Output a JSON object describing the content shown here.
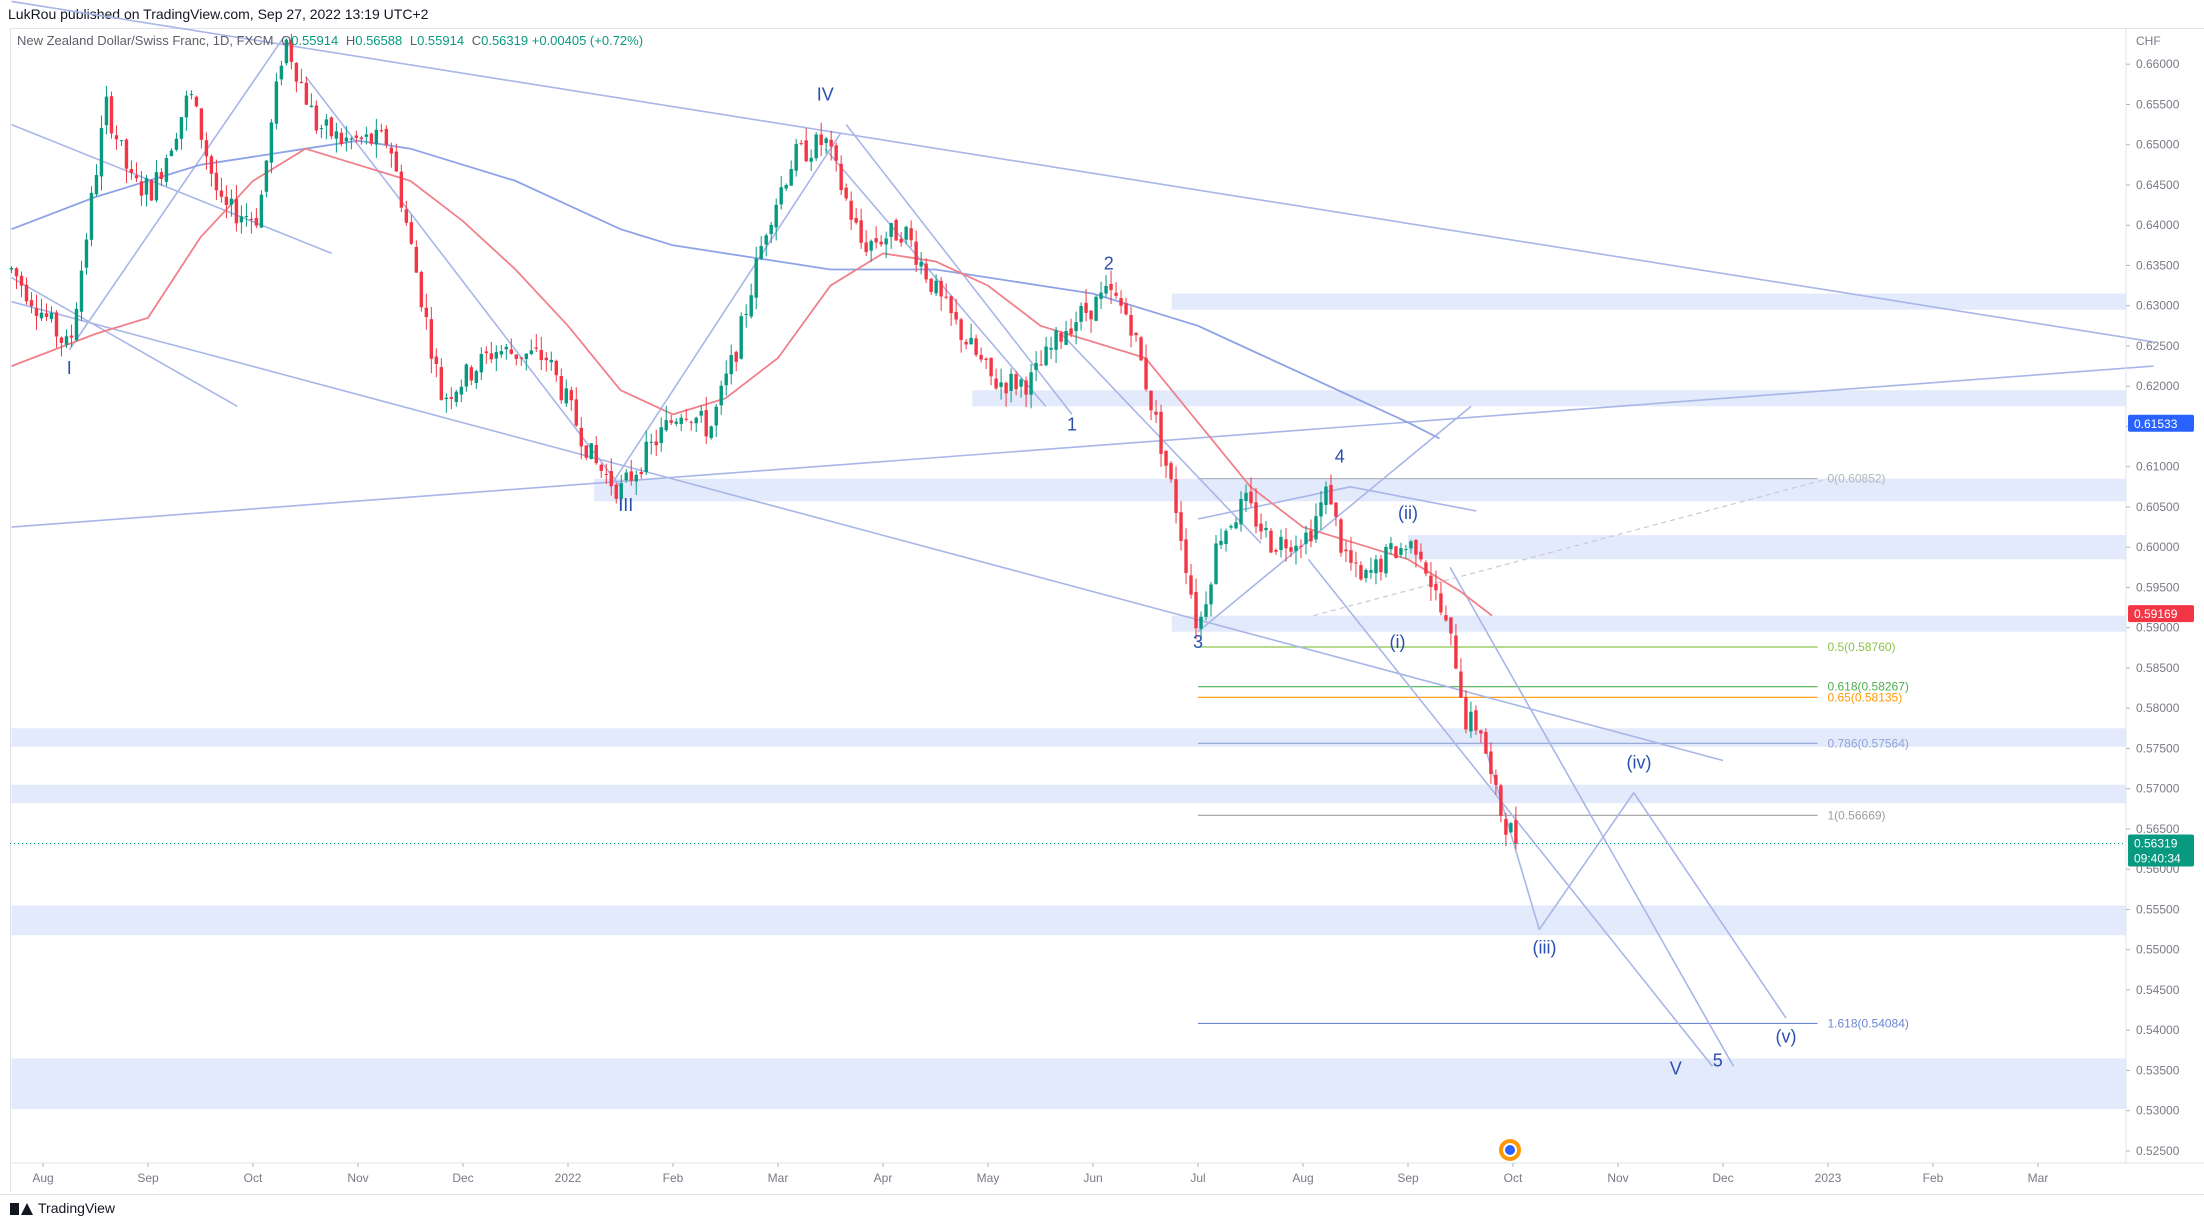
{
  "header": {
    "publisher": "LukRou published on TradingView.com, Sep 27, 2022 13:19 UTC+2"
  },
  "legend": {
    "symbol": "New Zealand Dollar/Swiss Franc, 1D, FXCM",
    "o_label": "O",
    "o_value": "0.55914",
    "h_label": "H",
    "h_value": "0.56588",
    "l_label": "L",
    "l_value": "0.55914",
    "c_label": "C",
    "c_value": "0.56319",
    "change": "+0.00405 (+0.72%)"
  },
  "footer": {
    "brand": "TradingView"
  },
  "colors": {
    "up": "#089981",
    "down": "#f23645",
    "trend": "#a8b6e8",
    "ma_fast": "#f0808a",
    "ma_slow": "#8ea2e6",
    "zone": "#e3eafb",
    "wave_label": "#2a4fb0",
    "price_tag": "#089981"
  },
  "chart_data": {
    "type": "candlestick",
    "currency": "CHF",
    "ylim": [
      0.5235,
      0.6645
    ],
    "y_ticks": [
      "0.66000",
      "0.65500",
      "0.65000",
      "0.64500",
      "0.64000",
      "0.63500",
      "0.63000",
      "0.62500",
      "0.62000",
      "0.61500",
      "0.61000",
      "0.60500",
      "0.60000",
      "0.59500",
      "0.59000",
      "0.58500",
      "0.58000",
      "0.57500",
      "0.57000",
      "0.56500",
      "0.56000",
      "0.55500",
      "0.55000",
      "0.54500",
      "0.54000",
      "0.53500",
      "0.53000",
      "0.52500"
    ],
    "x_ticks": [
      {
        "label": "Aug",
        "m": 0
      },
      {
        "label": "Sep",
        "m": 1
      },
      {
        "label": "Oct",
        "m": 2
      },
      {
        "label": "Nov",
        "m": 3
      },
      {
        "label": "Dec",
        "m": 4
      },
      {
        "label": "2022",
        "m": 5
      },
      {
        "label": "Feb",
        "m": 6
      },
      {
        "label": "Mar",
        "m": 7
      },
      {
        "label": "Apr",
        "m": 8
      },
      {
        "label": "May",
        "m": 9
      },
      {
        "label": "Jun",
        "m": 10
      },
      {
        "label": "Jul",
        "m": 11
      },
      {
        "label": "Aug",
        "m": 12
      },
      {
        "label": "Sep",
        "m": 13
      },
      {
        "label": "Oct",
        "m": 14
      },
      {
        "label": "Nov",
        "m": 15
      },
      {
        "label": "Dec",
        "m": 16
      },
      {
        "label": "2023",
        "m": 17
      },
      {
        "label": "Feb",
        "m": 18
      },
      {
        "label": "Mar",
        "m": 19
      }
    ],
    "price_path": [
      [
        -0.3,
        0.6345
      ],
      [
        0.25,
        0.6245
      ],
      [
        0.6,
        0.655
      ],
      [
        0.85,
        0.645
      ],
      [
        1.05,
        0.6445
      ],
      [
        1.4,
        0.6565
      ],
      [
        1.7,
        0.642
      ],
      [
        2.05,
        0.641
      ],
      [
        2.3,
        0.6635
      ],
      [
        2.6,
        0.6525
      ],
      [
        2.85,
        0.6505
      ],
      [
        3.3,
        0.6505
      ],
      [
        3.8,
        0.6185
      ],
      [
        4.3,
        0.6245
      ],
      [
        4.8,
        0.6235
      ],
      [
        5.25,
        0.6105
      ],
      [
        5.5,
        0.607
      ],
      [
        5.85,
        0.6135
      ],
      [
        6.1,
        0.6175
      ],
      [
        6.35,
        0.6145
      ],
      [
        6.6,
        0.6245
      ],
      [
        6.9,
        0.6405
      ],
      [
        7.15,
        0.6485
      ],
      [
        7.45,
        0.6505
      ],
      [
        7.8,
        0.6375
      ],
      [
        8.2,
        0.6395
      ],
      [
        8.55,
        0.6305
      ],
      [
        9.05,
        0.6205
      ],
      [
        9.4,
        0.6205
      ],
      [
        9.75,
        0.6275
      ],
      [
        10.15,
        0.6315
      ],
      [
        10.35,
        0.6285
      ],
      [
        10.6,
        0.6155
      ],
      [
        10.8,
        0.6045
      ],
      [
        11.0,
        0.5895
      ],
      [
        11.2,
        0.6015
      ],
      [
        11.45,
        0.6055
      ],
      [
        11.7,
        0.6005
      ],
      [
        12.05,
        0.6015
      ],
      [
        12.25,
        0.6075
      ],
      [
        12.35,
        0.6005
      ],
      [
        12.55,
        0.5955
      ],
      [
        12.85,
        0.5995
      ],
      [
        13.1,
        0.6005
      ],
      [
        13.3,
        0.5925
      ],
      [
        13.45,
        0.5865
      ],
      [
        13.55,
        0.5785
      ],
      [
        13.7,
        0.5775
      ],
      [
        13.8,
        0.5705
      ],
      [
        13.9,
        0.5665
      ],
      [
        14.05,
        0.5632
      ]
    ],
    "ma_fast": [
      [
        -0.3,
        0.6225
      ],
      [
        0.5,
        0.6265
      ],
      [
        1.0,
        0.6285
      ],
      [
        1.5,
        0.6385
      ],
      [
        2.0,
        0.6455
      ],
      [
        2.5,
        0.6495
      ],
      [
        3.0,
        0.6475
      ],
      [
        3.5,
        0.6455
      ],
      [
        4.0,
        0.6405
      ],
      [
        4.5,
        0.6345
      ],
      [
        5.0,
        0.6275
      ],
      [
        5.5,
        0.6195
      ],
      [
        6.0,
        0.6165
      ],
      [
        6.5,
        0.6185
      ],
      [
        7.0,
        0.6235
      ],
      [
        7.5,
        0.6325
      ],
      [
        8.0,
        0.6365
      ],
      [
        8.5,
        0.6355
      ],
      [
        9.0,
        0.6325
      ],
      [
        9.5,
        0.6275
      ],
      [
        10.0,
        0.6255
      ],
      [
        10.5,
        0.6235
      ],
      [
        11.0,
        0.6155
      ],
      [
        11.5,
        0.6075
      ],
      [
        12.0,
        0.6025
      ],
      [
        12.5,
        0.6005
      ],
      [
        13.0,
        0.5985
      ],
      [
        13.5,
        0.5945
      ],
      [
        13.8,
        0.5915
      ]
    ],
    "ma_slow": [
      [
        -0.3,
        0.6395
      ],
      [
        0.5,
        0.6435
      ],
      [
        1.0,
        0.6455
      ],
      [
        1.5,
        0.6475
      ],
      [
        2.0,
        0.6485
      ],
      [
        2.5,
        0.6495
      ],
      [
        3.0,
        0.6505
      ],
      [
        3.5,
        0.6495
      ],
      [
        4.0,
        0.6475
      ],
      [
        4.5,
        0.6455
      ],
      [
        5.0,
        0.6425
      ],
      [
        5.5,
        0.6395
      ],
      [
        6.0,
        0.6375
      ],
      [
        6.5,
        0.6365
      ],
      [
        7.0,
        0.6355
      ],
      [
        7.5,
        0.6345
      ],
      [
        8.0,
        0.6345
      ],
      [
        8.5,
        0.6345
      ],
      [
        9.0,
        0.6335
      ],
      [
        9.5,
        0.6325
      ],
      [
        10.0,
        0.6315
      ],
      [
        10.5,
        0.6295
      ],
      [
        11.0,
        0.6275
      ],
      [
        11.5,
        0.6245
      ],
      [
        12.0,
        0.6215
      ],
      [
        12.5,
        0.6185
      ],
      [
        13.0,
        0.6155
      ],
      [
        13.3,
        0.6135
      ]
    ],
    "zones": [
      [
        0.6315,
        0.6295,
        10.75,
        20.1
      ],
      [
        0.6195,
        0.6175,
        8.85,
        20.1
      ],
      [
        0.6085,
        0.6057,
        5.25,
        20.1
      ],
      [
        0.6015,
        0.5985,
        13.0,
        20.1
      ],
      [
        0.5915,
        0.5895,
        10.75,
        20.1
      ],
      [
        0.5775,
        0.5752,
        -0.3,
        20.1
      ],
      [
        0.5705,
        0.5682,
        -0.3,
        20.1
      ],
      [
        0.5555,
        0.5518,
        -0.3,
        20.1
      ],
      [
        0.5365,
        0.5302,
        -0.3,
        20.1
      ]
    ],
    "trendlines": [
      [
        -0.3,
        0.6678,
        20.1,
        0.6255
      ],
      [
        -0.3,
        0.6025,
        20.1,
        0.6225
      ],
      [
        -0.3,
        0.6305,
        16.0,
        0.5735
      ],
      [
        -0.3,
        0.6525,
        2.75,
        0.6365
      ],
      [
        -0.3,
        0.6335,
        1.85,
        0.6175
      ],
      [
        0.25,
        0.6245,
        2.3,
        0.6635
      ],
      [
        2.5,
        0.6585,
        5.5,
        0.6075
      ],
      [
        5.4,
        0.6075,
        7.6,
        0.6515
      ],
      [
        7.65,
        0.6525,
        9.8,
        0.6165
      ],
      [
        7.45,
        0.6495,
        9.55,
        0.6175
      ],
      [
        9.7,
        0.6265,
        11.6,
        0.6005
      ],
      [
        11.0,
        0.5895,
        13.6,
        0.6175
      ],
      [
        11.0,
        0.6035,
        12.45,
        0.6075
      ],
      [
        12.45,
        0.6075,
        13.65,
        0.6045
      ],
      [
        12.05,
        0.5985,
        15.9,
        0.5355
      ],
      [
        13.4,
        0.5975,
        16.1,
        0.5355
      ],
      [
        13.75,
        0.5745,
        14.25,
        0.5525
      ],
      [
        14.25,
        0.5525,
        15.15,
        0.5695
      ],
      [
        15.15,
        0.5695,
        16.6,
        0.5415
      ]
    ],
    "dashed_line": [
      12.1,
      0.5915,
      17.0,
      0.6085
    ],
    "fib_levels": [
      {
        "label": "0(0.60852)",
        "value": 0.60852,
        "color": "#b2b5be"
      },
      {
        "label": "0.5(0.58760)",
        "value": 0.5876,
        "color": "#8bc34a"
      },
      {
        "label": "0.618(0.58267)",
        "value": 0.58267,
        "color": "#4caf50"
      },
      {
        "label": "0.65(0.58135)",
        "value": 0.58135,
        "color": "#ff9800"
      },
      {
        "label": "0.786(0.57564)",
        "value": 0.57564,
        "color": "#90a4d6"
      },
      {
        "label": "1(0.56669)",
        "value": 0.56669,
        "color": "#9e9e9e"
      },
      {
        "label": "1.618(0.54084)",
        "value": 0.54084,
        "color": "#6d86d4"
      }
    ],
    "fib_x_range": [
      11.0,
      16.9
    ],
    "wave_labels": [
      {
        "text": "I",
        "m": 0.25,
        "y": 0.6215
      },
      {
        "text": "IV",
        "m": 7.45,
        "y": 0.6555
      },
      {
        "text": "III",
        "m": 5.55,
        "y": 0.6045
      },
      {
        "text": "2",
        "m": 10.15,
        "y": 0.6345
      },
      {
        "text": "1",
        "m": 9.8,
        "y": 0.6145
      },
      {
        "text": "4",
        "m": 12.35,
        "y": 0.6105
      },
      {
        "text": "(ii)",
        "m": 13.0,
        "y": 0.6035
      },
      {
        "text": "3",
        "m": 11.0,
        "y": 0.5875
      },
      {
        "text": "(i)",
        "m": 12.9,
        "y": 0.5875
      },
      {
        "text": "(iv)",
        "m": 15.2,
        "y": 0.5725
      },
      {
        "text": "(iii)",
        "m": 14.3,
        "y": 0.5495
      },
      {
        "text": "(v)",
        "m": 16.6,
        "y": 0.5385
      },
      {
        "text": "V",
        "m": 15.55,
        "y": 0.5345
      },
      {
        "text": "5",
        "m": 15.95,
        "y": 0.5355
      }
    ],
    "price_labels": [
      {
        "text": "0.61533",
        "value": 0.61533,
        "color": "#2962ff"
      },
      {
        "text": "0.59169",
        "value": 0.59169,
        "color": "#f23645"
      },
      {
        "text": "0.56319",
        "value": 0.56319,
        "color": "#089981",
        "sub": "09:40:34"
      }
    ]
  }
}
